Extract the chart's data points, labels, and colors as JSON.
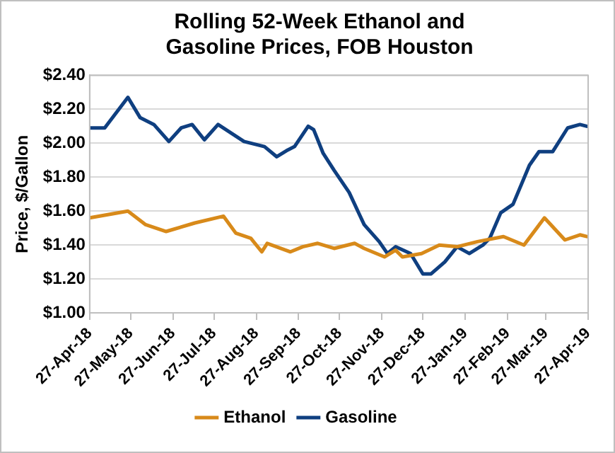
{
  "chart_data": {
    "type": "line",
    "title": "Rolling 52-Week Ethanol and Gasoline Prices, FOB Houston",
    "ylabel": "Price, $/Gallon",
    "ylim": [
      1.0,
      2.4
    ],
    "yticks": [
      {
        "value": 1.0,
        "label": "$1.00"
      },
      {
        "value": 1.2,
        "label": "$1.20"
      },
      {
        "value": 1.4,
        "label": "$1.40"
      },
      {
        "value": 1.6,
        "label": "$1.60"
      },
      {
        "value": 1.8,
        "label": "$1.80"
      },
      {
        "value": 2.0,
        "label": "$2.00"
      },
      {
        "value": 2.2,
        "label": "$2.20"
      },
      {
        "value": 2.4,
        "label": "$2.40"
      }
    ],
    "xlim": [
      "2018-04-27",
      "2019-04-27"
    ],
    "xticks": [
      {
        "value": "2018-04-27",
        "label": "27-Apr-18"
      },
      {
        "value": "2018-05-27",
        "label": "27-May-18"
      },
      {
        "value": "2018-06-27",
        "label": "27-Jun-18"
      },
      {
        "value": "2018-07-27",
        "label": "27-Jul-18"
      },
      {
        "value": "2018-08-27",
        "label": "27-Aug-18"
      },
      {
        "value": "2018-09-27",
        "label": "27-Sep-18"
      },
      {
        "value": "2018-10-27",
        "label": "27-Oct-18"
      },
      {
        "value": "2018-11-27",
        "label": "27-Nov-18"
      },
      {
        "value": "2018-12-27",
        "label": "27-Dec-18"
      },
      {
        "value": "2019-01-27",
        "label": "27-Jan-19"
      },
      {
        "value": "2019-02-27",
        "label": "27-Feb-19"
      },
      {
        "value": "2019-03-27",
        "label": "27-Mar-19"
      },
      {
        "value": "2019-04-27",
        "label": "27-Apr-19"
      }
    ],
    "grid": "y",
    "legend": "bottom",
    "marker": "none",
    "line_style": "solid",
    "series": [
      {
        "name": "Ethanol",
        "color": "#d88a1a",
        "x": [
          "2018-04-27",
          "2018-05-25",
          "2018-06-07",
          "2018-06-22",
          "2018-07-13",
          "2018-08-03",
          "2018-08-12",
          "2018-08-23",
          "2018-08-31",
          "2018-09-04",
          "2018-09-21",
          "2018-09-30",
          "2018-10-11",
          "2018-10-23",
          "2018-11-07",
          "2018-11-14",
          "2018-11-29",
          "2018-12-07",
          "2018-12-12",
          "2018-12-26",
          "2019-01-08",
          "2019-01-21",
          "2019-02-05",
          "2019-02-24",
          "2019-03-11",
          "2019-03-26",
          "2019-04-10",
          "2019-04-21",
          "2019-04-26"
        ],
        "values": [
          1.56,
          1.6,
          1.52,
          1.48,
          1.53,
          1.57,
          1.47,
          1.44,
          1.36,
          1.41,
          1.36,
          1.39,
          1.41,
          1.38,
          1.41,
          1.38,
          1.33,
          1.37,
          1.33,
          1.35,
          1.4,
          1.39,
          1.42,
          1.45,
          1.4,
          1.56,
          1.43,
          1.46,
          1.45
        ]
      },
      {
        "name": "Gasoline",
        "color": "#0f3f80",
        "x": [
          "2018-04-27",
          "2018-05-08",
          "2018-05-25",
          "2018-06-03",
          "2018-06-13",
          "2018-06-24",
          "2018-07-03",
          "2018-07-11",
          "2018-07-20",
          "2018-07-30",
          "2018-08-18",
          "2018-09-02",
          "2018-09-11",
          "2018-09-19",
          "2018-09-24",
          "2018-10-04",
          "2018-10-08",
          "2018-10-15",
          "2018-10-23",
          "2018-11-03",
          "2018-11-14",
          "2018-11-25",
          "2018-12-01",
          "2018-12-07",
          "2018-12-18",
          "2018-12-27",
          "2019-01-02",
          "2019-01-12",
          "2019-01-21",
          "2019-01-30",
          "2019-02-09",
          "2019-02-14",
          "2019-02-22",
          "2019-03-03",
          "2019-03-15",
          "2019-03-22",
          "2019-04-01",
          "2019-04-12",
          "2019-04-21",
          "2019-04-26"
        ],
        "values": [
          2.09,
          2.09,
          2.27,
          2.15,
          2.11,
          2.01,
          2.09,
          2.11,
          2.02,
          2.11,
          2.01,
          1.98,
          1.92,
          1.96,
          1.98,
          2.1,
          2.08,
          1.94,
          1.84,
          1.71,
          1.52,
          1.42,
          1.35,
          1.39,
          1.35,
          1.23,
          1.23,
          1.3,
          1.39,
          1.35,
          1.4,
          1.44,
          1.59,
          1.64,
          1.87,
          1.95,
          1.95,
          2.09,
          2.11,
          2.1
        ]
      }
    ]
  }
}
